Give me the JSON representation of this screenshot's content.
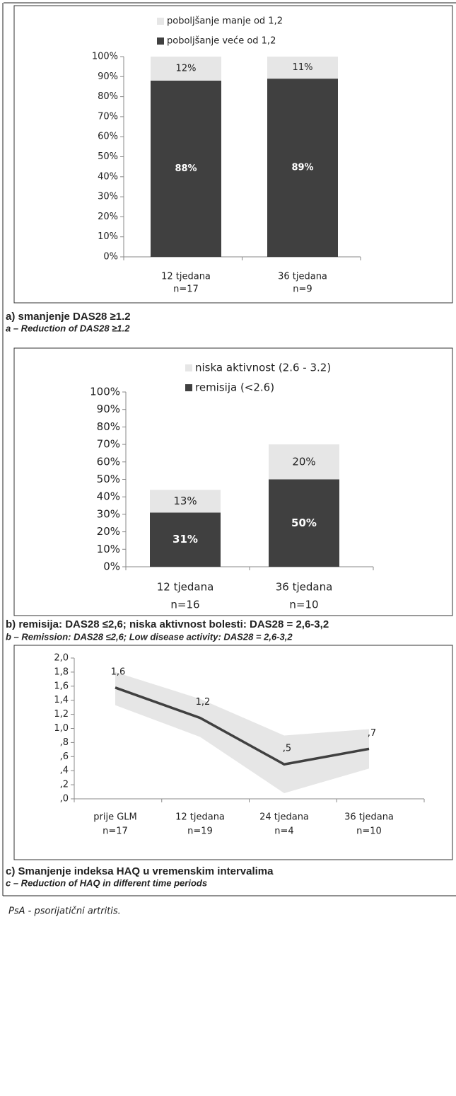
{
  "chart_data": [
    {
      "type": "stacked_bar",
      "categories": [
        [
          "12 tjedana",
          "n=17"
        ],
        [
          "36 tjedana",
          "n=9"
        ]
      ],
      "series": [
        {
          "name": "poboljšanje veće od 1,2",
          "color": "#404040",
          "values": [
            88,
            89
          ],
          "value_labels": [
            "88%",
            "89%"
          ]
        },
        {
          "name": "poboljšanje manje od 1,2",
          "color": "#e6e6e6",
          "values": [
            12,
            11
          ],
          "value_labels": [
            "12%",
            "11%"
          ]
        }
      ],
      "ylim": [
        0,
        100
      ],
      "yticks": [
        {
          "value": 0,
          "label": "0%"
        },
        {
          "value": 10,
          "label": "10%"
        },
        {
          "value": 20,
          "label": "20%"
        },
        {
          "value": 30,
          "label": "30%"
        },
        {
          "value": 40,
          "label": "40%"
        },
        {
          "value": 50,
          "label": "50%"
        },
        {
          "value": 60,
          "label": "60%"
        },
        {
          "value": 70,
          "label": "70%"
        },
        {
          "value": 80,
          "label": "80%"
        },
        {
          "value": 90,
          "label": "90%"
        },
        {
          "value": 100,
          "label": "100%"
        }
      ],
      "caption": "a) smanjenje DAS28 ≥1.2",
      "caption_en": "a – Reduction of DAS28 ≥1.2"
    },
    {
      "type": "stacked_bar",
      "categories": [
        [
          "12 tjedana",
          "n=16"
        ],
        [
          "36 tjedana",
          "n=10"
        ]
      ],
      "series": [
        {
          "name": "remisija (<2.6)",
          "color": "#404040",
          "values": [
            31,
            50
          ],
          "value_labels": [
            "31%",
            "50%"
          ]
        },
        {
          "name": "niska aktivnost (2.6 - 3.2)",
          "color": "#e6e6e6",
          "values": [
            13,
            20
          ],
          "value_labels": [
            "13%",
            "20%"
          ]
        }
      ],
      "ylim": [
        0,
        100
      ],
      "yticks": [
        {
          "value": 0,
          "label": "0%"
        },
        {
          "value": 10,
          "label": "10%"
        },
        {
          "value": 20,
          "label": "20%"
        },
        {
          "value": 30,
          "label": "30%"
        },
        {
          "value": 40,
          "label": "40%"
        },
        {
          "value": 50,
          "label": "50%"
        },
        {
          "value": 60,
          "label": "60%"
        },
        {
          "value": 70,
          "label": "70%"
        },
        {
          "value": 80,
          "label": "80%"
        },
        {
          "value": 90,
          "label": "90%"
        },
        {
          "value": 100,
          "label": "100%"
        }
      ],
      "caption": "b) remisija: DAS28 ≤2,6; niska aktivnost bolesti: DAS28 = 2,6-3,2",
      "caption_en": "b – Remission: DAS28 ≤2,6; Low disease activity: DAS28 = 2,6-3,2"
    },
    {
      "type": "line_band",
      "categories": [
        [
          "prije GLM",
          "n=17"
        ],
        [
          "12 tjedana",
          "n=19"
        ],
        [
          "24 tjedana",
          "n=4"
        ],
        [
          "36 tjedana",
          "n=10"
        ]
      ],
      "values": [
        1.58,
        1.15,
        0.49,
        0.71
      ],
      "value_labels": [
        "1,6",
        "1,2",
        ",5",
        ",7"
      ],
      "color": "#404040",
      "band": {
        "lower": [
          1.33,
          0.88,
          0.08,
          0.43
        ],
        "upper": [
          1.8,
          1.42,
          0.9,
          0.99
        ],
        "color": "#e6e6e6"
      },
      "ylim": [
        0,
        2
      ],
      "yticks": [
        {
          "value": 0,
          "label": ",0"
        },
        {
          "value": 0.2,
          "label": ",2"
        },
        {
          "value": 0.4,
          "label": ",4"
        },
        {
          "value": 0.6,
          "label": ",6"
        },
        {
          "value": 0.8,
          "label": ",8"
        },
        {
          "value": 1.0,
          "label": "1,0"
        },
        {
          "value": 1.2,
          "label": "1,2"
        },
        {
          "value": 1.4,
          "label": "1,4"
        },
        {
          "value": 1.6,
          "label": "1,6"
        },
        {
          "value": 1.8,
          "label": "1,8"
        },
        {
          "value": 2.0,
          "label": "2,0"
        }
      ],
      "caption": "c) Smanjenje indeksa HAQ u vremenskim intervalima",
      "caption_en": "c – Reduction of HAQ in different time periods"
    }
  ],
  "footnote": "PsA - psorijatični artritis."
}
